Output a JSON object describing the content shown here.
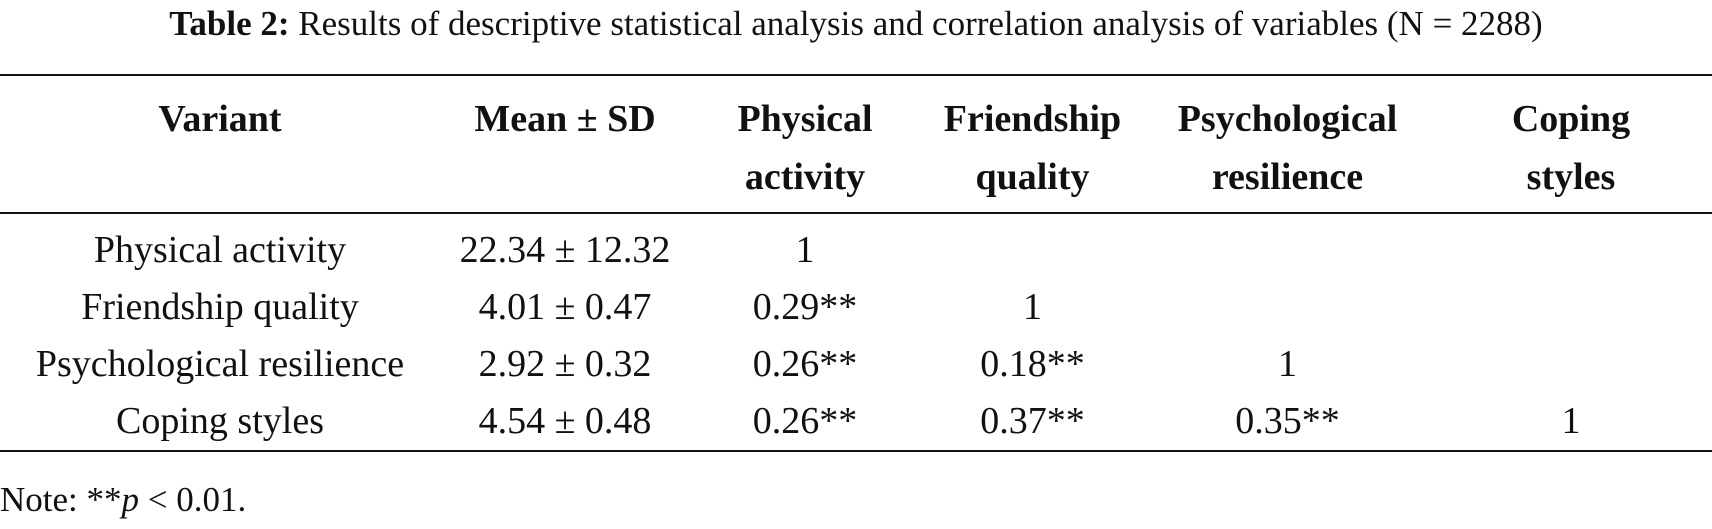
{
  "caption": {
    "label": "Table 2:",
    "text": "Results of descriptive statistical analysis and correlation analysis of variables (N = 2288)"
  },
  "table": {
    "headers": [
      [
        "Variant"
      ],
      [
        "Mean ± SD"
      ],
      [
        "Physical",
        "activity"
      ],
      [
        "Friendship",
        "quality"
      ],
      [
        "Psychological",
        "resilience"
      ],
      [
        "Coping",
        "styles"
      ]
    ],
    "rows": [
      [
        "Physical activity",
        "22.34 ± 12.32",
        "1",
        "",
        "",
        ""
      ],
      [
        "Friendship quality",
        "4.01 ± 0.47",
        "0.29**",
        "1",
        "",
        ""
      ],
      [
        "Psychological resilience",
        "2.92 ± 0.32",
        "0.26**",
        "0.18**",
        "1",
        ""
      ],
      [
        "Coping styles",
        "4.54 ± 0.48",
        "0.26**",
        "0.37**",
        "0.35**",
        "1"
      ]
    ]
  },
  "note": {
    "prefix": "Note: **",
    "p": "p",
    "suffix": " < 0.01."
  }
}
